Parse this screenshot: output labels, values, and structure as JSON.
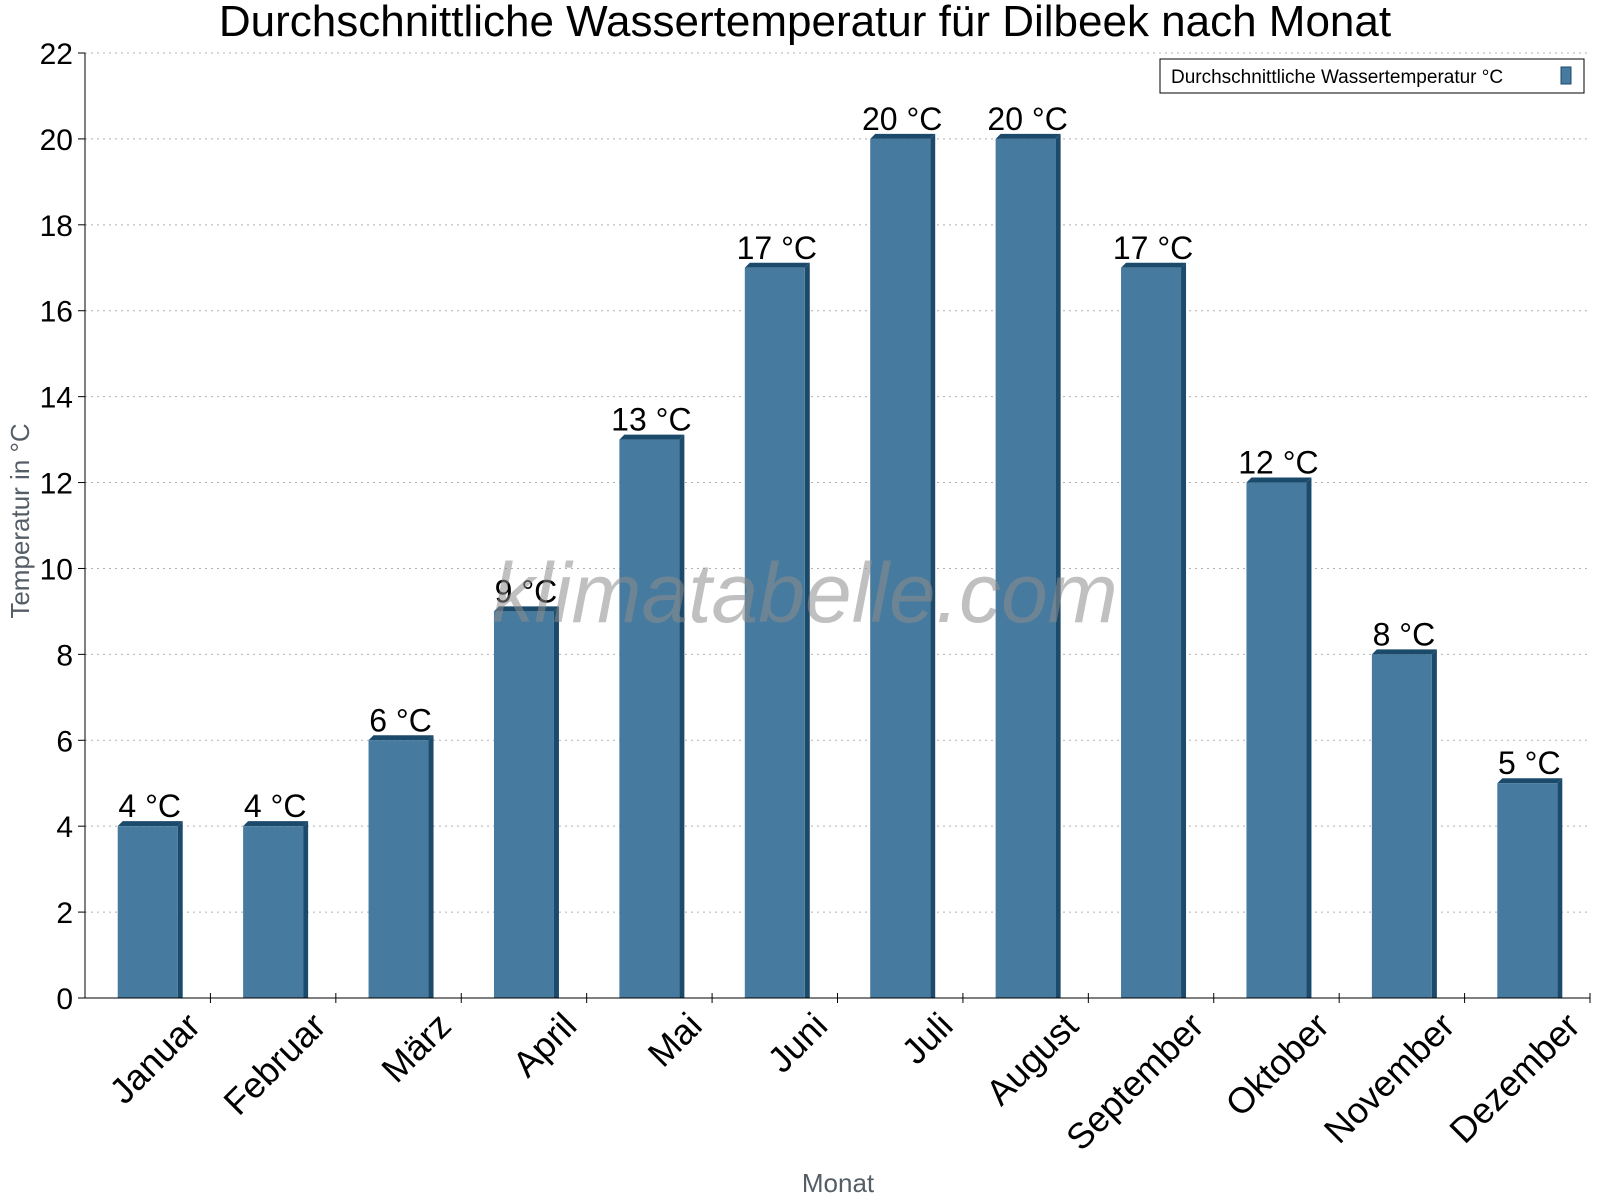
{
  "chart_data": {
    "type": "bar",
    "title": "Durchschnittliche Wassertemperatur für Dilbeek nach Monat",
    "xlabel": "Monat",
    "ylabel": "Temperatur in °C",
    "categories": [
      "Januar",
      "Februar",
      "März",
      "April",
      "Mai",
      "Juni",
      "Juli",
      "August",
      "September",
      "Oktober",
      "November",
      "Dezember"
    ],
    "series": [
      {
        "name": "Durchschnittliche Wassertemperatur °C",
        "values": [
          4,
          4,
          6,
          9,
          13,
          17,
          20,
          20,
          17,
          12,
          8,
          5
        ],
        "labels": [
          "4 °C",
          "4 °C",
          "6 °C",
          "9 °C",
          "13 °C",
          "17 °C",
          "20 °C",
          "20 °C",
          "17 °C",
          "12 °C",
          "8 °C",
          "5 °C"
        ],
        "color": "#467a9e",
        "shade_color": "#1c4a6b"
      }
    ],
    "ylim": [
      0,
      22
    ],
    "yticks": [
      0,
      2,
      4,
      6,
      8,
      10,
      12,
      14,
      16,
      18,
      20,
      22
    ],
    "grid": true,
    "legend_position": "top-right"
  },
  "watermark": "klimatabelle.com"
}
